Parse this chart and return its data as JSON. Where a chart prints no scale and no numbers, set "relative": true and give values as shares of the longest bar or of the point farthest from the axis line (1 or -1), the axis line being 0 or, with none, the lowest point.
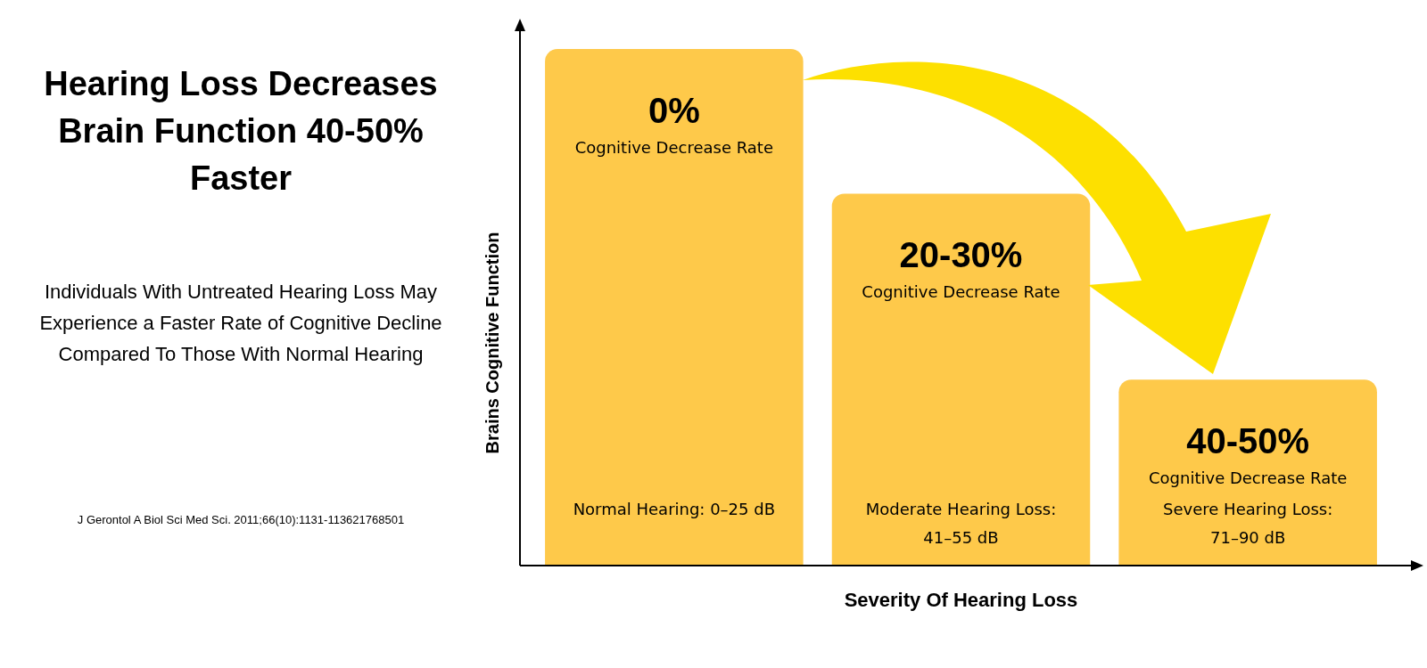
{
  "chart_data": {
    "type": "bar",
    "title": "Hearing Loss Decreases Brain Function 40-50% Faster",
    "subtitle": "Individuals With Untreated Hearing Loss May Experience a Faster Rate of Cognitive Decline Compared To Those With Normal Hearing",
    "xlabel": "Severity Of Hearing Loss",
    "ylabel": "Brains Cognitive Function",
    "categories": [
      "Normal Hearing: 0–25 dB",
      "Moderate Hearing Loss: 41–55 dB",
      "Severe Hearing Loss: 71–90 dB"
    ],
    "values": [
      1,
      0.72,
      0.36
    ],
    "color": "#fec94a",
    "relative": true,
    "annotations": [
      "0%",
      "Cognitive Decrease Rate",
      "20-30%",
      "Cognitive Decrease Rate",
      "40-50%",
      "Cognitive Decrease Rate",
      "J Gerontol A Biol Sci Med Sci. 2011;66(10):1131-113621768501"
    ]
  }
}
